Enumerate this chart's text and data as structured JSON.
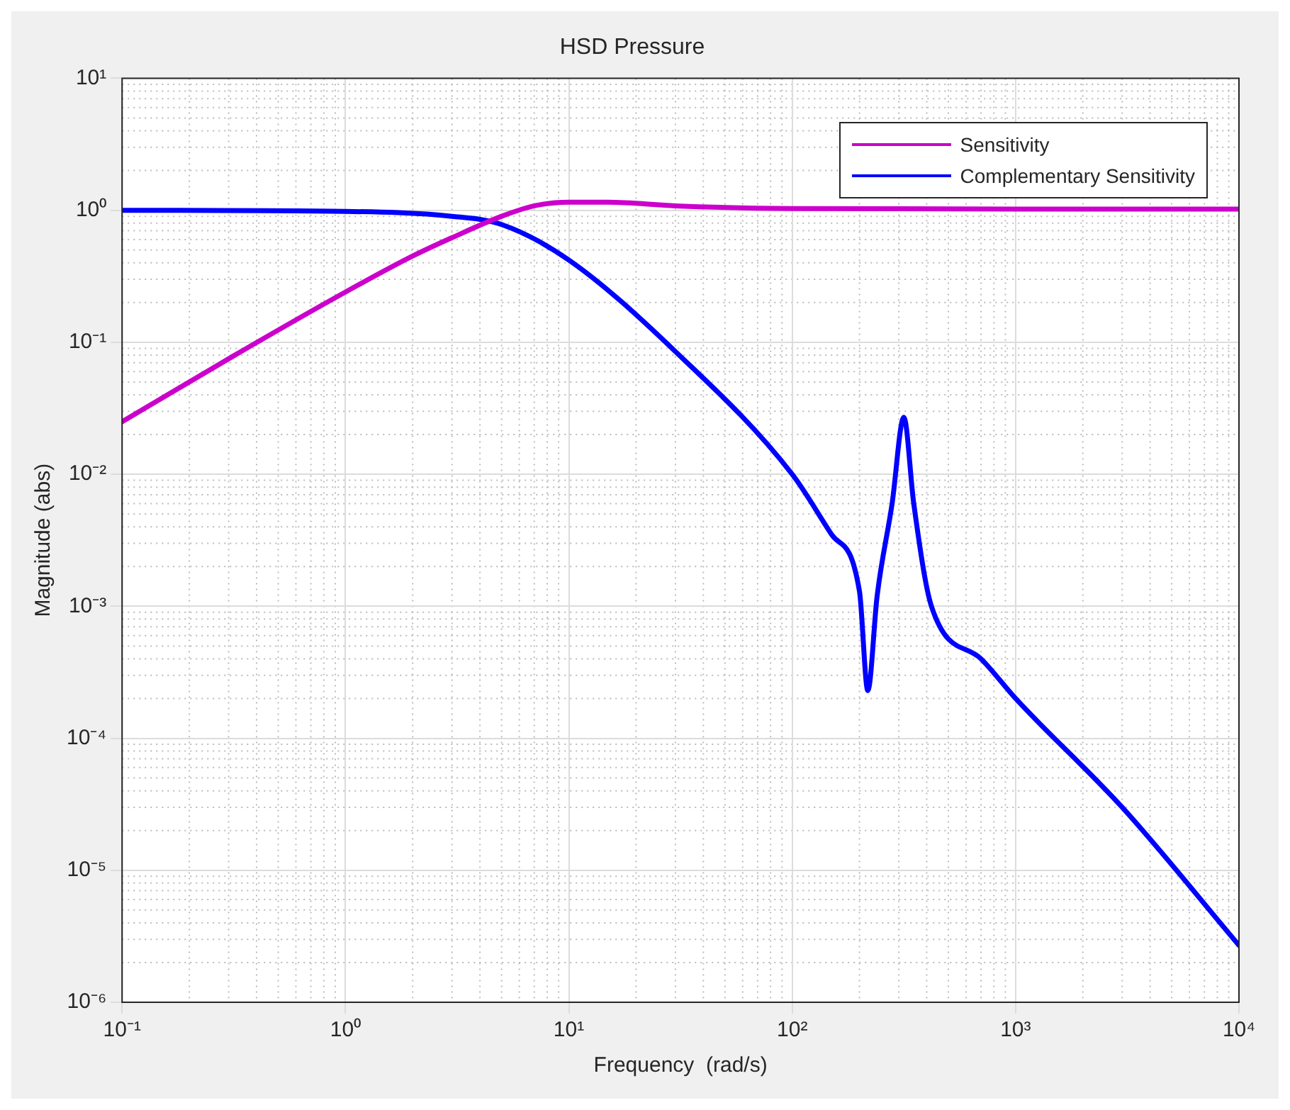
{
  "chart_data": {
    "type": "line",
    "title": "HSD Pressure",
    "xlabel": "Frequency  (rad/s)",
    "ylabel": "Magnitude (abs)",
    "log": "xy",
    "grid": true,
    "legend": "top right",
    "marker": "none",
    "line_style": "solid",
    "xlim": [
      0.1,
      10000
    ],
    "ylim": [
      1e-06,
      10
    ],
    "xticks": [
      {
        "value": 0.1,
        "label": "10⁻¹"
      },
      {
        "value": 1,
        "label": "10⁰"
      },
      {
        "value": 10,
        "label": "10¹"
      },
      {
        "value": 100,
        "label": "10²"
      },
      {
        "value": 1000,
        "label": "10³"
      },
      {
        "value": 10000,
        "label": "10⁴"
      }
    ],
    "yticks": [
      {
        "value": 1e-06,
        "label": "10⁻⁶"
      },
      {
        "value": 1e-05,
        "label": "10⁻⁵"
      },
      {
        "value": 0.0001,
        "label": "10⁻⁴"
      },
      {
        "value": 0.001,
        "label": "10⁻³"
      },
      {
        "value": 0.01,
        "label": "10⁻²"
      },
      {
        "value": 0.1,
        "label": "10⁻¹"
      },
      {
        "value": 1,
        "label": "10⁰"
      },
      {
        "value": 10,
        "label": "10¹"
      }
    ],
    "series": [
      {
        "name": "Sensitivity",
        "color": "#cc00cc",
        "x": [
          0.1,
          0.3,
          1,
          2,
          3,
          5,
          7,
          10,
          15,
          30,
          100,
          1000,
          10000
        ],
        "values": [
          0.025,
          0.075,
          0.24,
          0.45,
          0.62,
          0.9,
          1.08,
          1.15,
          1.15,
          1.08,
          1.03,
          1.02,
          1.02
        ]
      },
      {
        "name": "Complementary Sensitivity",
        "color": "#0000ff",
        "x": [
          0.1,
          1,
          3,
          5,
          10,
          30,
          100,
          150,
          200,
          218,
          240,
          280,
          316,
          350,
          420,
          700,
          1000,
          3000,
          10000
        ],
        "values": [
          1.0,
          0.98,
          0.9,
          0.78,
          0.42,
          0.085,
          0.01,
          0.0035,
          0.0013,
          0.00023,
          0.0012,
          0.006,
          0.027,
          0.006,
          0.001,
          0.0004,
          0.0002,
          3e-05,
          2.7e-06
        ]
      }
    ]
  }
}
